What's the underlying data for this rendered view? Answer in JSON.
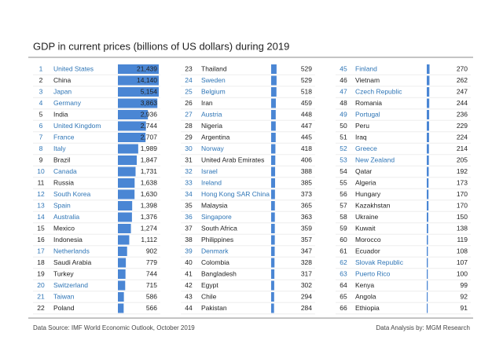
{
  "chart_data": {
    "type": "table-bars",
    "title": "GDP in current prices (billions of US dollars) during 2019",
    "bar_color": "#4a86d4",
    "columns": [
      {
        "ranks": [
          1,
          2,
          3,
          4,
          5,
          6,
          7,
          8,
          9,
          10,
          11,
          12,
          13,
          14,
          15,
          16,
          17,
          18,
          19,
          20,
          21,
          22
        ],
        "countries": [
          "United States",
          "China",
          "Japan",
          "Germany",
          "India",
          "United Kingdom",
          "France",
          "Italy",
          "Brazil",
          "Canada",
          "Russia",
          "South Korea",
          "Spain",
          "Australia",
          "Mexico",
          "Indonesia",
          "Netherlands",
          "Saudi Arabia",
          "Turkey",
          "Switzerland",
          "Taiwan",
          "Poland"
        ],
        "values": [
          21439,
          14140,
          5154,
          3863,
          2936,
          2744,
          2707,
          1989,
          1847,
          1731,
          1638,
          1630,
          1398,
          1376,
          1274,
          1112,
          902,
          779,
          744,
          715,
          586,
          566
        ],
        "value_labels": [
          "21,439",
          "14,140",
          "5,154",
          "3,863",
          "2,936",
          "2,744",
          "2,707",
          "1,989",
          "1,847",
          "1,731",
          "1,638",
          "1,630",
          "1,398",
          "1,376",
          "1,274",
          "1,112",
          "902",
          "779",
          "744",
          "715",
          "586",
          "566"
        ],
        "country_colors": [
          "#2e75b6",
          "#222222",
          "#2e75b6",
          "#2e75b6",
          "#222222",
          "#2e75b6",
          "#2e75b6",
          "#2e75b6",
          "#222222",
          "#2e75b6",
          "#222222",
          "#2e75b6",
          "#2e75b6",
          "#2e75b6",
          "#222222",
          "#222222",
          "#2e75b6",
          "#222222",
          "#222222",
          "#2e75b6",
          "#2e75b6",
          "#222222"
        ]
      },
      {
        "ranks": [
          23,
          24,
          25,
          26,
          27,
          28,
          29,
          30,
          31,
          32,
          33,
          34,
          35,
          36,
          37,
          38,
          39,
          40,
          41,
          42,
          43,
          44
        ],
        "countries": [
          "Thailand",
          "Sweden",
          "Belgium",
          "Iran",
          "Austria",
          "Nigeria",
          "Argentina",
          "Norway",
          "United Arab Emirates",
          "Israel",
          "Ireland",
          "Hong Kong SAR China",
          "Malaysia",
          "Singapore",
          "South Africa",
          "Philippines",
          "Denmark",
          "Colombia",
          "Bangladesh",
          "Egypt",
          "Chile",
          "Pakistan"
        ],
        "values": [
          529,
          529,
          518,
          459,
          448,
          447,
          445,
          418,
          406,
          388,
          385,
          373,
          365,
          363,
          359,
          357,
          347,
          328,
          317,
          302,
          294,
          284
        ],
        "country_colors": [
          "#222222",
          "#2e75b6",
          "#2e75b6",
          "#222222",
          "#2e75b6",
          "#222222",
          "#222222",
          "#2e75b6",
          "#222222",
          "#2e75b6",
          "#2e75b6",
          "#2e75b6",
          "#222222",
          "#2e75b6",
          "#222222",
          "#222222",
          "#2e75b6",
          "#222222",
          "#222222",
          "#222222",
          "#222222",
          "#222222"
        ]
      },
      {
        "ranks": [
          45,
          46,
          47,
          48,
          49,
          50,
          51,
          52,
          53,
          54,
          55,
          56,
          57,
          58,
          59,
          60,
          61,
          62,
          63,
          64,
          65,
          66
        ],
        "countries": [
          "Finland",
          "Vietnam",
          "Czech Republic",
          "Romania",
          "Portugal",
          "Peru",
          "Iraq",
          "Greece",
          "New Zealand",
          "Qatar",
          "Algeria",
          "Hungary",
          "Kazakhstan",
          "Ukraine",
          "Kuwait",
          "Morocco",
          "Ecuador",
          "Slovak Republic",
          "Puerto Rico",
          "Kenya",
          "Angola",
          "Ethiopia"
        ],
        "values": [
          270,
          262,
          247,
          244,
          236,
          229,
          224,
          214,
          205,
          192,
          173,
          170,
          170,
          150,
          138,
          119,
          108,
          107,
          100,
          99,
          92,
          91
        ],
        "country_colors": [
          "#2e75b6",
          "#222222",
          "#2e75b6",
          "#222222",
          "#2e75b6",
          "#222222",
          "#222222",
          "#2e75b6",
          "#2e75b6",
          "#222222",
          "#222222",
          "#222222",
          "#222222",
          "#222222",
          "#222222",
          "#222222",
          "#222222",
          "#2e75b6",
          "#2e75b6",
          "#222222",
          "#222222",
          "#222222"
        ]
      }
    ],
    "source": "Data Source: IMF World Economic Outlook, October 2019",
    "credit": "Data Analysis by: MGM Research"
  }
}
